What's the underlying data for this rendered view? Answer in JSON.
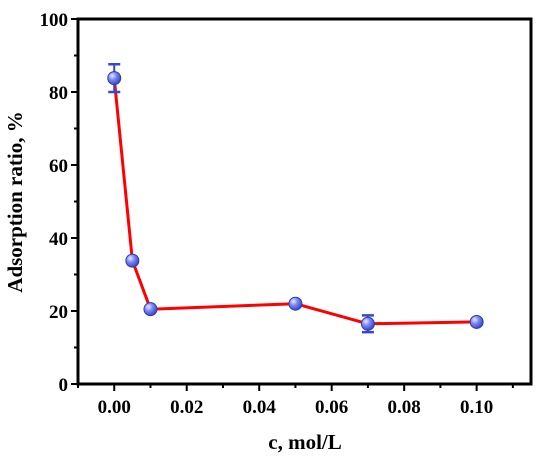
{
  "chart_data": {
    "type": "line",
    "xlabel": "c, mol/L",
    "ylabel": "Adsorption ratio, %",
    "xlim": [
      -0.01,
      0.115
    ],
    "ylim": [
      0,
      100
    ],
    "x_ticks": [
      0.0,
      0.02,
      0.04,
      0.06,
      0.08,
      0.1
    ],
    "x_tick_labels": [
      "0.00",
      "0.02",
      "0.04",
      "0.06",
      "0.08",
      "0.10"
    ],
    "y_ticks": [
      0,
      20,
      40,
      60,
      80,
      100
    ],
    "y_tick_labels": [
      "0",
      "20",
      "40",
      "60",
      "80",
      "100"
    ],
    "grid": false,
    "series": [
      {
        "x": [
          0.0,
          0.005,
          0.01,
          0.05,
          0.07,
          0.1
        ],
        "y": [
          83.8,
          33.8,
          20.5,
          22.0,
          16.5,
          17.0
        ],
        "error": [
          3.8,
          0.6,
          0.6,
          0.6,
          2.3,
          0.7
        ],
        "line_color": "#ff0000",
        "marker_color": "#5b6cf0"
      }
    ]
  }
}
